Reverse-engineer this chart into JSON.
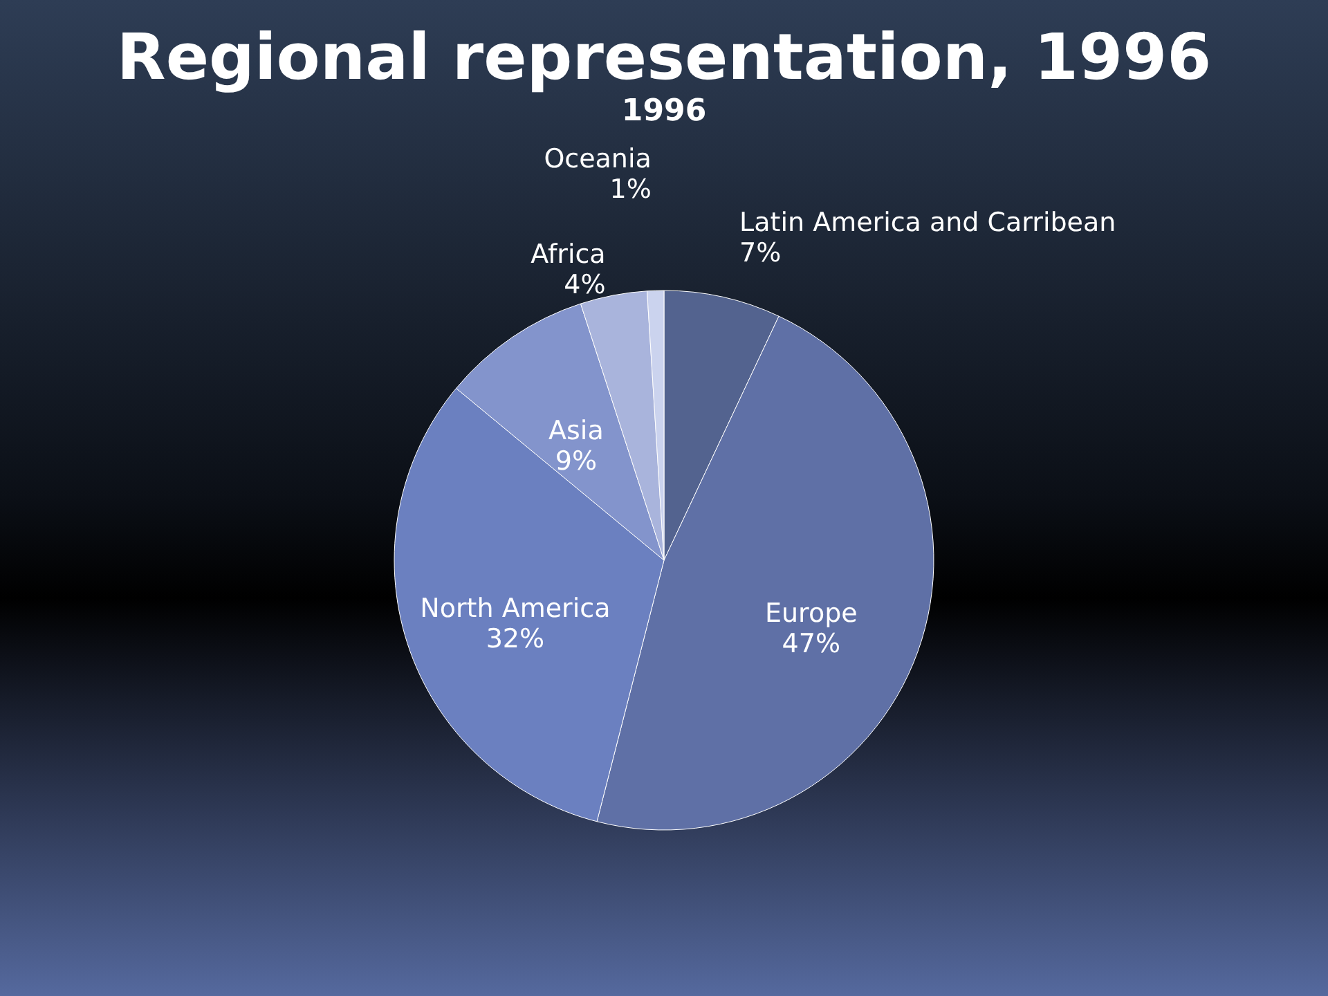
{
  "chart_data": {
    "type": "pie",
    "title": "Regional representation, 1996",
    "subtitle": "1996",
    "categories": [
      "Latin America and Carribean",
      "Europe",
      "North America",
      "Asia",
      "Africa",
      "Oceania"
    ],
    "values": [
      7,
      47,
      32,
      9,
      4,
      1
    ],
    "colors": [
      "#53638f",
      "#5f70a6",
      "#6b80c0",
      "#8394cc",
      "#a9b4dc",
      "#cbd3ee"
    ],
    "value_labels": [
      "7%",
      "47%",
      "32%",
      "9%",
      "4%",
      "1%"
    ]
  }
}
